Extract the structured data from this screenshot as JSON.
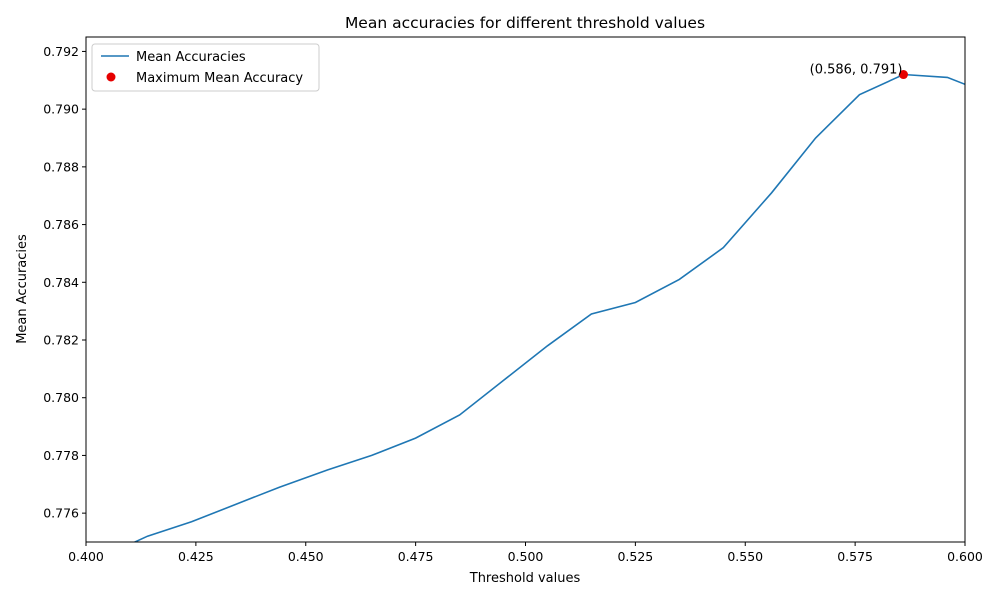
{
  "chart_data": {
    "type": "line",
    "title": "Mean accuracies for different threshold values",
    "xlabel": "Threshold values",
    "ylabel": "Mean Accuracies",
    "xlim": [
      0.4,
      0.6
    ],
    "ylim": [
      0.775,
      0.7925
    ],
    "xticks": [
      "0.400",
      "0.425",
      "0.450",
      "0.475",
      "0.500",
      "0.525",
      "0.550",
      "0.575",
      "0.600"
    ],
    "xtick_values": [
      0.4,
      0.425,
      0.45,
      0.475,
      0.5,
      0.525,
      0.55,
      0.575,
      0.6
    ],
    "yticks": [
      "0.776",
      "0.778",
      "0.780",
      "0.782",
      "0.784",
      "0.786",
      "0.788",
      "0.790",
      "0.792"
    ],
    "ytick_values": [
      0.776,
      0.778,
      0.78,
      0.782,
      0.784,
      0.786,
      0.788,
      0.79,
      0.792
    ],
    "grid": false,
    "legend_position": "top-left",
    "series": [
      {
        "name": "Mean Accuracies",
        "color": "#1f77b4",
        "x": [
          0.404,
          0.414,
          0.424,
          0.434,
          0.444,
          0.455,
          0.465,
          0.475,
          0.485,
          0.495,
          0.505,
          0.515,
          0.525,
          0.535,
          0.545,
          0.556,
          0.566,
          0.576,
          0.586,
          0.596,
          0.606
        ],
        "y": [
          0.7745,
          0.7752,
          0.7757,
          0.7763,
          0.7769,
          0.7775,
          0.778,
          0.7786,
          0.7794,
          0.7806,
          0.7818,
          0.7829,
          0.7833,
          0.7841,
          0.7852,
          0.7871,
          0.789,
          0.7905,
          0.7912,
          0.7911,
          0.7905
        ]
      }
    ],
    "highlight": {
      "name": "Maximum Mean Accuracy",
      "color": "#e60000",
      "x": 0.586,
      "y": 0.7912,
      "label": "(0.586, 0.791)"
    }
  }
}
